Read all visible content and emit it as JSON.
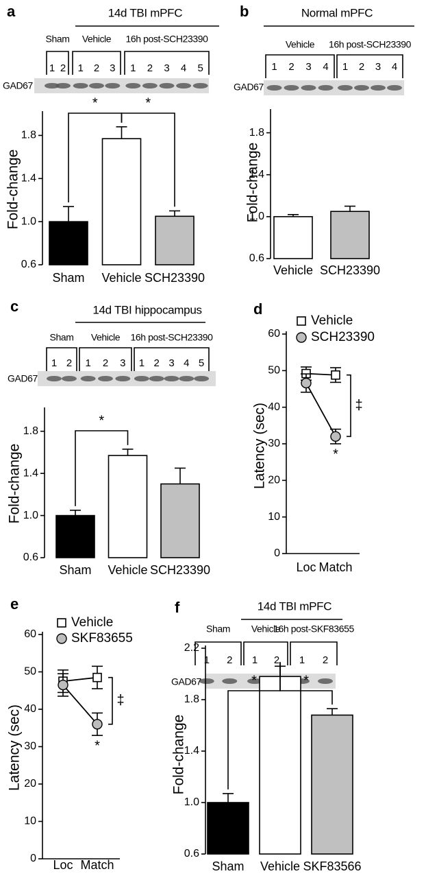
{
  "chart_data": [
    {
      "type": "bar",
      "panel": "a",
      "title": "14d TBI mPFC",
      "groups": [
        {
          "label": "Sham",
          "lanes": [
            "1",
            "2"
          ]
        },
        {
          "label": "Vehicle",
          "lanes": [
            "1",
            "2",
            "3"
          ]
        },
        {
          "label": "16h post-SCH23390",
          "lanes": [
            "1",
            "2",
            "3",
            "4",
            "5"
          ]
        }
      ],
      "blot_label": "GAD67",
      "y_label": "Fold-change",
      "categories": [
        "Sham",
        "Vehicle",
        "SCH23390"
      ],
      "values": [
        1.0,
        1.77,
        1.05
      ],
      "errors": [
        0.14,
        0.11,
        0.05
      ],
      "colors": [
        "#000000",
        "#ffffff",
        "#c0c0c0"
      ],
      "ylim": [
        0.6,
        2.0
      ],
      "yticks": [
        0.6,
        {
          "value": 1,
          "label": "1.0"
        },
        1.4,
        1.8
      ],
      "significance": [
        {
          "label": "*",
          "pair": [
            "Sham",
            "Vehicle"
          ]
        },
        {
          "label": "*",
          "pair": [
            "Vehicle",
            "SCH23390"
          ]
        }
      ]
    },
    {
      "type": "bar",
      "panel": "b",
      "title": "Normal mPFC",
      "groups": [
        {
          "label": "Vehicle",
          "lanes": [
            "1",
            "2",
            "3",
            "4"
          ]
        },
        {
          "label": "16h post-SCH23390",
          "lanes": [
            "1",
            "2",
            "3",
            "4"
          ]
        }
      ],
      "blot_label": "GAD67",
      "y_label": "Fold-change",
      "categories": [
        "Vehicle",
        "SCH23390"
      ],
      "values": [
        1.0,
        1.05
      ],
      "errors": [
        0.02,
        0.05
      ],
      "colors": [
        "#ffffff",
        "#c0c0c0"
      ],
      "ylim": [
        0.6,
        2.0
      ],
      "yticks": [
        0.6,
        {
          "value": 1,
          "label": "1.0"
        },
        1.4,
        1.8
      ],
      "significance": []
    },
    {
      "type": "bar",
      "panel": "c",
      "title": "14d TBI hippocampus",
      "groups": [
        {
          "label": "Sham",
          "lanes": [
            "1",
            "2"
          ]
        },
        {
          "label": "Vehicle",
          "lanes": [
            "1",
            "2",
            "3"
          ]
        },
        {
          "label": "16h post-SCH23390",
          "lanes": [
            "1",
            "2",
            "3",
            "4",
            "5"
          ]
        }
      ],
      "blot_label": "GAD67",
      "y_label": "Fold-change",
      "categories": [
        "Sham",
        "Vehicle",
        "SCH23390"
      ],
      "values": [
        1.0,
        1.57,
        1.3
      ],
      "errors": [
        0.05,
        0.06,
        0.15
      ],
      "colors": [
        "#000000",
        "#ffffff",
        "#c0c0c0"
      ],
      "ylim": [
        0.6,
        2.0
      ],
      "yticks": [
        0.6,
        {
          "value": 1,
          "label": "1.0"
        },
        1.4,
        1.8
      ],
      "significance": [
        {
          "label": "*",
          "pair": [
            "Sham",
            "Vehicle"
          ]
        }
      ]
    },
    {
      "type": "line",
      "panel": "d",
      "y_label": "Latency (sec)",
      "categories": [
        "Loc",
        "Match"
      ],
      "series": [
        {
          "name": "Vehicle",
          "marker": "square",
          "color": "#ffffff",
          "values": [
            49.2,
            48.8
          ],
          "errors": [
            1.8,
            2.0
          ]
        },
        {
          "name": "SCH23390",
          "marker": "circle",
          "color": "#bdbdbd",
          "values": [
            46.6,
            32.0
          ],
          "errors": [
            2.5,
            2.0
          ]
        }
      ],
      "ylim": [
        0,
        60
      ],
      "yticks": [
        0,
        10,
        20,
        30,
        40,
        50,
        60
      ],
      "significance": [
        {
          "label": "‡",
          "category": "Match"
        }
      ],
      "point_marks": [
        {
          "label": "*",
          "series": "SCH23390",
          "category": "Match"
        }
      ]
    },
    {
      "type": "line",
      "panel": "e",
      "y_label": "Latency (sec)",
      "categories": [
        "Loc",
        "Match"
      ],
      "series": [
        {
          "name": "Vehicle",
          "marker": "square",
          "color": "#ffffff",
          "values": [
            47.5,
            48.5
          ],
          "errors": [
            3.0,
            3.0
          ]
        },
        {
          "name": "SKF83655",
          "marker": "circle",
          "color": "#bdbdbd",
          "values": [
            46.5,
            36.0
          ],
          "errors": [
            3.0,
            3.0
          ]
        }
      ],
      "ylim": [
        0,
        60
      ],
      "yticks": [
        0,
        10,
        20,
        30,
        40,
        50,
        60
      ],
      "significance": [
        {
          "label": "‡",
          "category": "Match"
        }
      ],
      "point_marks": [
        {
          "label": "*",
          "series": "SKF83655",
          "category": "Match"
        }
      ]
    },
    {
      "type": "bar",
      "panel": "f",
      "title": "14d TBI mPFC",
      "groups": [
        {
          "label": "Sham",
          "lanes": [
            "1",
            "2"
          ]
        },
        {
          "label": "Vehicle",
          "lanes": [
            "1",
            "2"
          ]
        },
        {
          "label": "16h post-SKF83655",
          "lanes": [
            "1",
            "2"
          ]
        }
      ],
      "blot_label": "GAD67",
      "y_label": "Fold-change",
      "categories": [
        "Sham",
        "Vehicle",
        "SKF83566"
      ],
      "values": [
        1.0,
        1.98,
        1.68
      ],
      "errors": [
        0.07,
        0.08,
        0.05
      ],
      "colors": [
        "#000000",
        "#ffffff",
        "#c0c0c0"
      ],
      "ylim": [
        0.6,
        2.2
      ],
      "yticks": [
        0.6,
        {
          "value": 1,
          "label": "1.0"
        },
        1.4,
        1.8,
        2.2
      ],
      "significance": [
        {
          "label": "*",
          "pair": [
            "Sham",
            "Vehicle"
          ]
        },
        {
          "label": "*",
          "pair": [
            "Vehicle",
            "SKF83566"
          ]
        }
      ]
    }
  ]
}
